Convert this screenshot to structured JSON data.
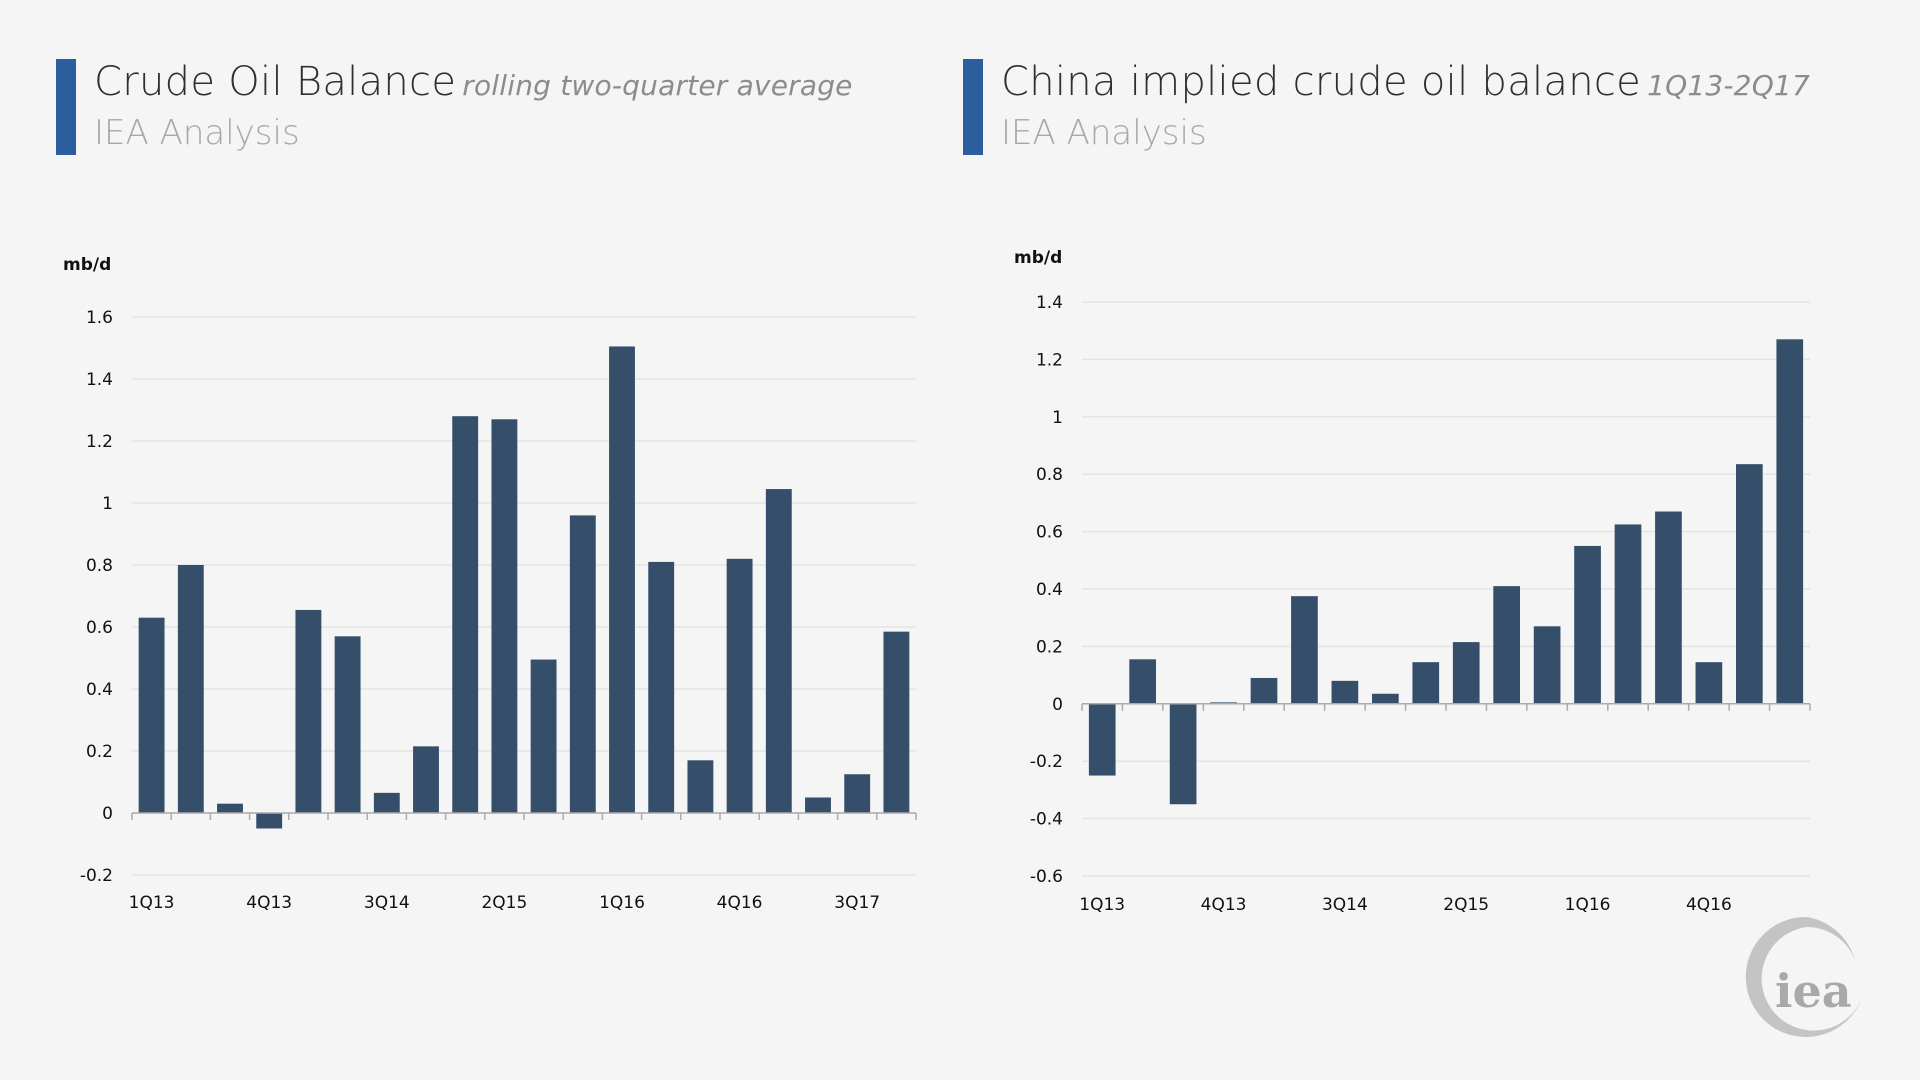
{
  "colors": {
    "background": "#f5f5f5",
    "accent": "#2c5e9e",
    "bar": "#354f6b",
    "grid": "#e4e4e4",
    "axis": "#aaaaaa",
    "logo": "#bdbdbd"
  },
  "panels": [
    {
      "title": "Crude Oil Balance",
      "title_qualifier": "rolling two-quarter average",
      "source": "IEA Analysis"
    },
    {
      "title": "China implied crude oil balance",
      "title_qualifier": "1Q13-2Q17",
      "source": "IEA Analysis"
    }
  ],
  "logo": {
    "text": "iea"
  },
  "chart_data": [
    {
      "type": "bar",
      "title": "Crude Oil Balance rolling two-quarter average",
      "ylabel": "mb/d",
      "xlabel": "",
      "ylim": [
        -0.2,
        1.6
      ],
      "yticks": [
        -0.2,
        0,
        0.2,
        0.4,
        0.6,
        0.8,
        1,
        1.2,
        1.4,
        1.6
      ],
      "ytick_labels": [
        "-0.2",
        "0",
        "0.2",
        "0.4",
        "0.6",
        "0.8",
        "1",
        "1.2",
        "1.4",
        "1.6"
      ],
      "grid": true,
      "categories": [
        "1Q13",
        "2Q13",
        "3Q13",
        "4Q13",
        "1Q14",
        "2Q14",
        "3Q14",
        "4Q14",
        "1Q15",
        "2Q15",
        "3Q15",
        "4Q15",
        "1Q16",
        "2Q16",
        "3Q16",
        "4Q16",
        "1Q17",
        "2Q17",
        "3Q17",
        "4Q17"
      ],
      "xtick_labels": [
        {
          "index": 0,
          "label": "1Q13"
        },
        {
          "index": 3,
          "label": "4Q13"
        },
        {
          "index": 6,
          "label": "3Q14"
        },
        {
          "index": 9,
          "label": "2Q15"
        },
        {
          "index": 12,
          "label": "1Q16"
        },
        {
          "index": 15,
          "label": "4Q16"
        },
        {
          "index": 18,
          "label": "3Q17"
        }
      ],
      "values": [
        0.63,
        0.8,
        0.03,
        -0.05,
        0.655,
        0.57,
        0.065,
        0.215,
        1.28,
        1.27,
        0.495,
        0.96,
        1.505,
        0.81,
        0.17,
        0.82,
        1.045,
        0.05,
        0.125,
        0.585
      ]
    },
    {
      "type": "bar",
      "title": "China implied crude oil balance 1Q13-2Q17",
      "ylabel": "mb/d",
      "xlabel": "",
      "ylim": [
        -0.6,
        1.4
      ],
      "yticks": [
        -0.6,
        -0.4,
        -0.2,
        0,
        0.2,
        0.4,
        0.6,
        0.8,
        1,
        1.2,
        1.4
      ],
      "ytick_labels": [
        "-0.6",
        "-0.4",
        "-0.2",
        "0",
        "0.2",
        "0.4",
        "0.6",
        "0.8",
        "1",
        "1.2",
        "1.4"
      ],
      "grid": true,
      "categories": [
        "1Q13",
        "2Q13",
        "3Q13",
        "4Q13",
        "1Q14",
        "2Q14",
        "3Q14",
        "4Q14",
        "1Q15",
        "2Q15",
        "3Q15",
        "4Q15",
        "1Q16",
        "2Q16",
        "3Q16",
        "4Q16",
        "1Q17",
        "2Q17"
      ],
      "xtick_labels": [
        {
          "index": 0,
          "label": "1Q13"
        },
        {
          "index": 3,
          "label": "4Q13"
        },
        {
          "index": 6,
          "label": "3Q14"
        },
        {
          "index": 9,
          "label": "2Q15"
        },
        {
          "index": 12,
          "label": "1Q16"
        },
        {
          "index": 15,
          "label": "4Q16"
        }
      ],
      "values": [
        -0.25,
        0.155,
        -0.35,
        0.005,
        0.09,
        0.375,
        0.08,
        0.035,
        0.145,
        0.215,
        0.41,
        0.27,
        0.55,
        0.625,
        0.67,
        0.145,
        0.835,
        1.27
      ]
    }
  ]
}
